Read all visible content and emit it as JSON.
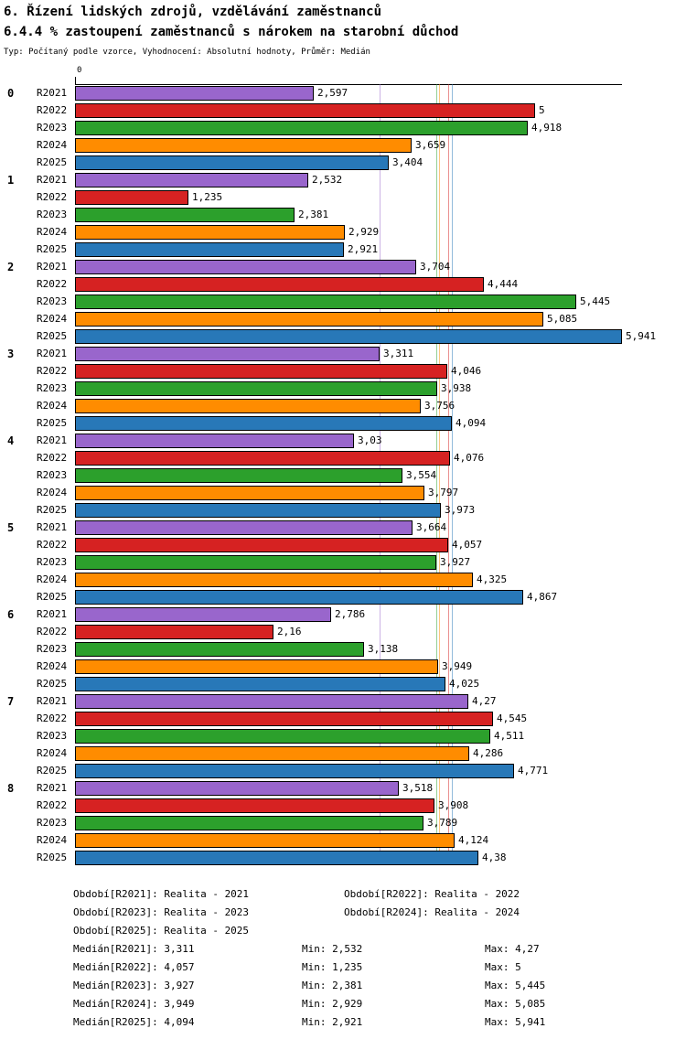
{
  "header": {
    "title": "6. Řízení lidských zdrojů, vzdělávání zaměstnanců",
    "subtitle": "6.4.4 % zastoupení zaměstnanců s nárokem na starobní důchod",
    "meta": "Typ: Počítaný podle vzorce, Vyhodnocení: Absolutní hodnoty, Průměr: Medián"
  },
  "chart_data": {
    "type": "bar",
    "orientation": "horizontal",
    "axis_zero_label": "0",
    "xlim": [
      0,
      5.941
    ],
    "grid": false,
    "groups": [
      "0",
      "1",
      "2",
      "3",
      "4",
      "5",
      "6",
      "7",
      "8"
    ],
    "series": [
      {
        "name": "R2021",
        "color": "#9966cc",
        "median": 3.311,
        "values": [
          2.597,
          2.532,
          3.704,
          3.311,
          3.03,
          3.664,
          2.786,
          4.27,
          3.518
        ],
        "labels": [
          "2,597",
          "2,532",
          "3,704",
          "3,311",
          "3,03",
          "3,664",
          "2,786",
          "4,27",
          "3,518"
        ]
      },
      {
        "name": "R2022",
        "color": "#d62222",
        "median": 4.057,
        "values": [
          5,
          1.235,
          4.444,
          4.046,
          4.076,
          4.057,
          2.16,
          4.545,
          3.908
        ],
        "labels": [
          "5",
          "1,235",
          "4,444",
          "4,046",
          "4,076",
          "4,057",
          "2,16",
          "4,545",
          "3,908"
        ]
      },
      {
        "name": "R2023",
        "color": "#2ca02c",
        "median": 3.927,
        "values": [
          4.918,
          2.381,
          5.445,
          3.938,
          3.554,
          3.927,
          3.138,
          4.511,
          3.789
        ],
        "labels": [
          "4,918",
          "2,381",
          "5,445",
          "3,938",
          "3,554",
          "3,927",
          "3,138",
          "4,511",
          "3,789"
        ]
      },
      {
        "name": "R2024",
        "color": "#ff8c00",
        "median": 3.949,
        "values": [
          3.659,
          2.929,
          5.085,
          3.756,
          3.797,
          4.325,
          3.949,
          4.286,
          4.124
        ],
        "labels": [
          "3,659",
          "2,929",
          "5,085",
          "3,756",
          "3,797",
          "4,325",
          "3,949",
          "4,286",
          "4,124"
        ]
      },
      {
        "name": "R2025",
        "color": "#2878b8",
        "median": 4.094,
        "values": [
          3.404,
          2.921,
          5.941,
          4.094,
          3.973,
          4.867,
          4.025,
          4.771,
          4.38
        ],
        "labels": [
          "3,404",
          "2,921",
          "5,941",
          "4,094",
          "3,973",
          "4,867",
          "4,025",
          "4,771",
          "4,38"
        ]
      }
    ]
  },
  "legend": {
    "items": [
      "Období[R2021]: Realita - 2021",
      "Období[R2022]: Realita - 2022",
      "Období[R2023]: Realita - 2023",
      "Období[R2024]: Realita - 2024",
      "Období[R2025]: Realita - 2025"
    ]
  },
  "stats": {
    "rows": [
      {
        "median": "Medián[R2021]: 3,311",
        "min": "Min: 2,532",
        "max": "Max: 4,27"
      },
      {
        "median": "Medián[R2022]: 4,057",
        "min": "Min: 1,235",
        "max": "Max: 5"
      },
      {
        "median": "Medián[R2023]: 3,927",
        "min": "Min: 2,381",
        "max": "Max: 5,445"
      },
      {
        "median": "Medián[R2024]: 3,949",
        "min": "Min: 2,929",
        "max": "Max: 5,085"
      },
      {
        "median": "Medián[R2025]: 4,094",
        "min": "Min: 2,921",
        "max": "Max: 5,941"
      }
    ]
  }
}
